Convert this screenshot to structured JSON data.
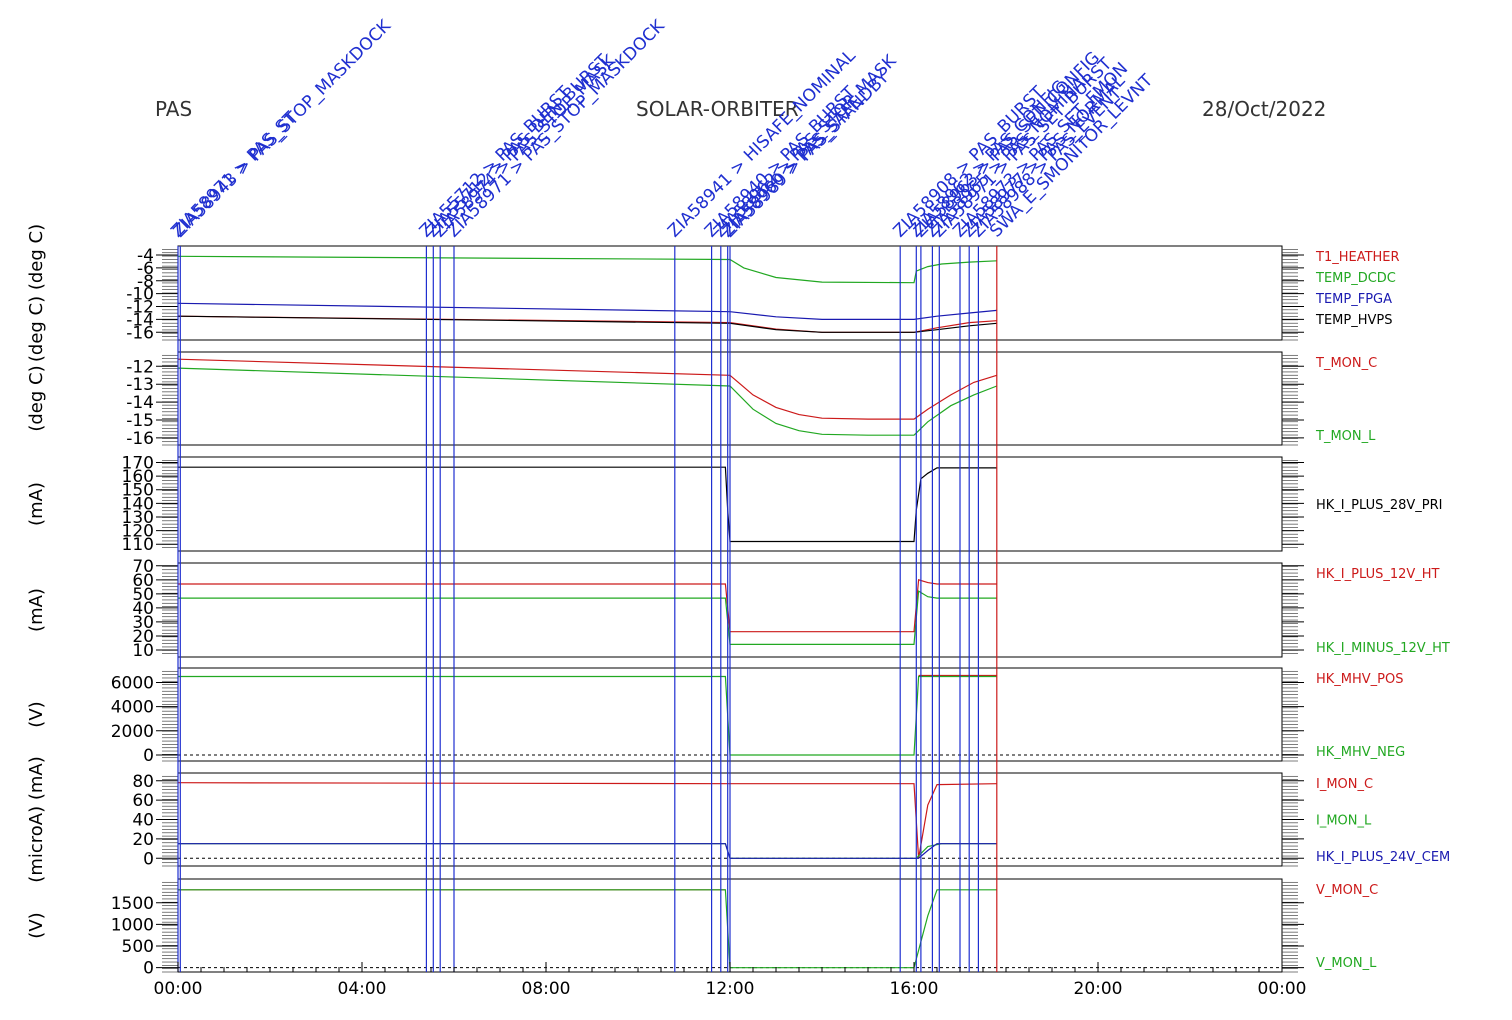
{
  "header": {
    "left": "PAS",
    "center": "SOLAR-ORBITER",
    "right": "28/Oct/2022"
  },
  "colors": {
    "black": "#000000",
    "red": "#cc1a1a",
    "green": "#22a822",
    "blue": "#1a1ab0",
    "event": "#1f2fd0"
  },
  "chart_data": {
    "type": "line",
    "x_unit": "hours",
    "xlim": [
      0,
      24
    ],
    "x_ticks": [
      {
        "value": 0,
        "label": "00:00"
      },
      {
        "value": 4,
        "label": "04:00"
      },
      {
        "value": 8,
        "label": "08:00"
      },
      {
        "value": 12,
        "label": "12:00"
      },
      {
        "value": 16,
        "label": "16:00"
      },
      {
        "value": 20,
        "label": "20:00"
      },
      {
        "value": 24,
        "label": "00:00"
      }
    ],
    "event_markers": [
      {
        "x": 0.0,
        "label": "ZIA58971 > PAS_ST"
      },
      {
        "x": 0.05,
        "label": "ZIA58943 > PAS_STOP_MASKDOCK"
      },
      {
        "x": 5.4,
        "label": "ZIA55712 > PAS_BURST"
      },
      {
        "x": 5.55,
        "label": "ZIA55712 > PAS_DEN_BURST"
      },
      {
        "x": 5.7,
        "label": "ZIA58974 > PAS_STOP_MASK"
      },
      {
        "x": 6.0,
        "label": "ZIA58971 > PAS_STOP_MASKDOCK"
      },
      {
        "x": 10.8,
        "label": "ZIA58941 > HISAFE_NOMINAL"
      },
      {
        "x": 11.6,
        "label": "ZIA58940 > PAS_BURST"
      },
      {
        "x": 11.8,
        "label": "ZIA58962 > PAS_STOP_MASK"
      },
      {
        "x": 11.95,
        "label": "ZIA58960 > PAS_SAFE"
      },
      {
        "x": 12.0,
        "label": "ZIA58989 > PAS_STANDBY"
      },
      {
        "x": 15.7,
        "label": "ZIA58908 > PAS_BURST"
      },
      {
        "x": 16.05,
        "label": "ZIA58962 > PAS_CONFIG"
      },
      {
        "x": 16.15,
        "label": "ZIA58963 > PAS_SET_CONFIG"
      },
      {
        "x": 16.4,
        "label": "ZIA58965 > PAS_NOMINAL"
      },
      {
        "x": 16.55,
        "label": "ZIA58971 > PAS_SET_BURST"
      },
      {
        "x": 17.0,
        "label": "ZIA58973 > PAS_SET_FMON"
      },
      {
        "x": 17.2,
        "label": "ZIA58977 > PAS_NORMAL"
      },
      {
        "x": 17.4,
        "label": "ZIA58988 > PAS_EVENT"
      },
      {
        "x": 17.8,
        "label": "SWA_E_SMONITOR_LEVNT",
        "color": "#cc1a1a"
      }
    ],
    "panels": [
      {
        "ylabel": "(deg C) (deg C)",
        "ylim": [
          -17.2,
          -2.6
        ],
        "y_ticks": [
          -4,
          -6,
          -8,
          -10,
          -12,
          -14,
          -16
        ],
        "series": [
          {
            "name": "T1_HEATHER",
            "color": "#cc1a1a",
            "x": [
              0,
              12,
              13,
              14,
              16,
              16.5,
              17.2,
              17.8
            ],
            "y": [
              -13.5,
              -14.5,
              -15.5,
              -16,
              -16,
              -15.3,
              -14.5,
              -14.2
            ]
          },
          {
            "name": "TEMP_DCDC",
            "color": "#22a822",
            "x": [
              0,
              12,
              12.3,
              13,
              14,
              16,
              16.05,
              16.3,
              16.6,
              17.2,
              17.8
            ],
            "y": [
              -4.2,
              -4.7,
              -6,
              -7.5,
              -8.2,
              -8.3,
              -6.5,
              -5.8,
              -5.4,
              -5.1,
              -4.9
            ]
          },
          {
            "name": "TEMP_FPGA",
            "color": "#1a1ab0",
            "x": [
              0,
              12,
              13,
              14,
              16,
              16.5,
              17.2,
              17.8
            ],
            "y": [
              -11.5,
              -12.8,
              -13.6,
              -14,
              -14,
              -13.5,
              -13,
              -12.6
            ]
          },
          {
            "name": "TEMP_HVPS",
            "color": "#000000",
            "x": [
              0,
              12,
              13,
              14,
              16,
              16.5,
              17.2,
              17.8
            ],
            "y": [
              -13.5,
              -14.6,
              -15.6,
              -16,
              -16,
              -15.6,
              -15,
              -14.6
            ]
          }
        ]
      },
      {
        "ylabel": "(deg C)",
        "ylim": [
          -16.4,
          -11.2
        ],
        "y_ticks": [
          -12,
          -13,
          -14,
          -15,
          -16
        ],
        "series": [
          {
            "name": "T_MON_C",
            "color": "#cc1a1a",
            "x": [
              0,
              12,
              12.5,
              13,
              13.5,
              14,
              15,
              16,
              16.3,
              16.8,
              17.3,
              17.8
            ],
            "y": [
              -11.6,
              -12.5,
              -13.6,
              -14.3,
              -14.7,
              -14.9,
              -14.95,
              -14.95,
              -14.4,
              -13.6,
              -12.9,
              -12.5
            ]
          },
          {
            "name": "T_MON_L",
            "color": "#22a822",
            "x": [
              0,
              12,
              12.5,
              13,
              13.5,
              14,
              15,
              16,
              16.3,
              16.8,
              17.3,
              17.8
            ],
            "y": [
              -12.1,
              -13.1,
              -14.4,
              -15.2,
              -15.6,
              -15.8,
              -15.85,
              -15.85,
              -15.1,
              -14.2,
              -13.6,
              -13.1
            ]
          }
        ]
      },
      {
        "ylabel": "(mA)",
        "ylim": [
          105,
          174
        ],
        "y_ticks": [
          170,
          160,
          150,
          140,
          130,
          120,
          110
        ],
        "series": [
          {
            "name": "HK_I_PLUS_28V_PRI",
            "color": "#000000",
            "x": [
              0,
              11.9,
              11.95,
              12,
              16,
              16.05,
              16.15,
              16.3,
              16.5,
              17.8
            ],
            "y": [
              166.5,
              166.5,
              135,
              112,
              112,
              135,
              158,
              162,
              166,
              166
            ]
          }
        ]
      },
      {
        "ylabel": "(mA)",
        "ylim": [
          5,
          72
        ],
        "y_ticks": [
          70,
          60,
          50,
          40,
          30,
          20,
          10
        ],
        "series": [
          {
            "name": "HK_I_PLUS_12V_HT",
            "color": "#cc1a1a",
            "x": [
              0,
              11.9,
              12,
              16,
              16.1,
              16.3,
              16.5,
              17.8
            ],
            "y": [
              57,
              57,
              23,
              23,
              60,
              58,
              57,
              57
            ]
          },
          {
            "name": "HK_I_MINUS_12V_HT",
            "color": "#22a822",
            "x": [
              0,
              11.9,
              12,
              16,
              16.1,
              16.3,
              16.5,
              17.8
            ],
            "y": [
              47,
              47,
              14,
              14,
              52,
              48,
              47,
              47
            ]
          }
        ]
      },
      {
        "ylabel": "(V)",
        "ylim": [
          -500,
          7200
        ],
        "y_ticks": [
          6000,
          4000,
          2000,
          0
        ],
        "series": [
          {
            "name": "HK_MHV_POS",
            "color": "#cc1a1a",
            "x": [
              16.1,
              17.8
            ],
            "y": [
              6580,
              6580
            ]
          },
          {
            "name": "HK_MHV_NEG",
            "color": "#22a822",
            "x": [
              0,
              11.9,
              12,
              16,
              16.1,
              17.8
            ],
            "y": [
              6500,
              6500,
              0,
              0,
              6500,
              6500
            ]
          }
        ]
      },
      {
        "ylabel": "(microA) (mA)",
        "ylim": [
          -8,
          88
        ],
        "y_ticks": [
          80,
          60,
          40,
          20,
          0
        ],
        "series": [
          {
            "name": "I_MON_C",
            "color": "#cc1a1a",
            "x": [
              0,
              12,
              16,
              16.1,
              16.3,
              16.5,
              17.8
            ],
            "y": [
              78,
              77,
              77,
              0,
              55,
              76,
              77
            ]
          },
          {
            "name": "I_MON_L",
            "color": "#22a822",
            "x": [
              0,
              11.9,
              12,
              16,
              16.05,
              16.3,
              16.6,
              17.8
            ],
            "y": [
              15,
              15,
              0,
              0,
              0,
              12,
              15,
              15
            ]
          },
          {
            "name": "HK_I_PLUS_24V_CEM",
            "color": "#1a1ab0",
            "x": [
              0,
              11.9,
              12,
              16,
              16.1,
              16.3,
              16.5,
              17.8
            ],
            "y": [
              15,
              15,
              0,
              0,
              0,
              8,
              15,
              15
            ]
          }
        ]
      },
      {
        "ylabel": "(V)",
        "ylim": [
          -100,
          2050
        ],
        "y_ticks": [
          1500,
          1000,
          500,
          0
        ],
        "series": [
          {
            "name": "V_MON_C",
            "color": "#cc1a1a",
            "x": [
              0,
              11.9
            ],
            "y": [
              1800,
              1800
            ]
          },
          {
            "name": "V_MON_L",
            "color": "#22a822",
            "x": [
              0,
              11.9,
              12,
              16,
              16.05,
              16.3,
              16.5,
              17.8
            ],
            "y": [
              1800,
              1800,
              0,
              0,
              200,
              1200,
              1800,
              1800
            ]
          }
        ]
      }
    ]
  }
}
